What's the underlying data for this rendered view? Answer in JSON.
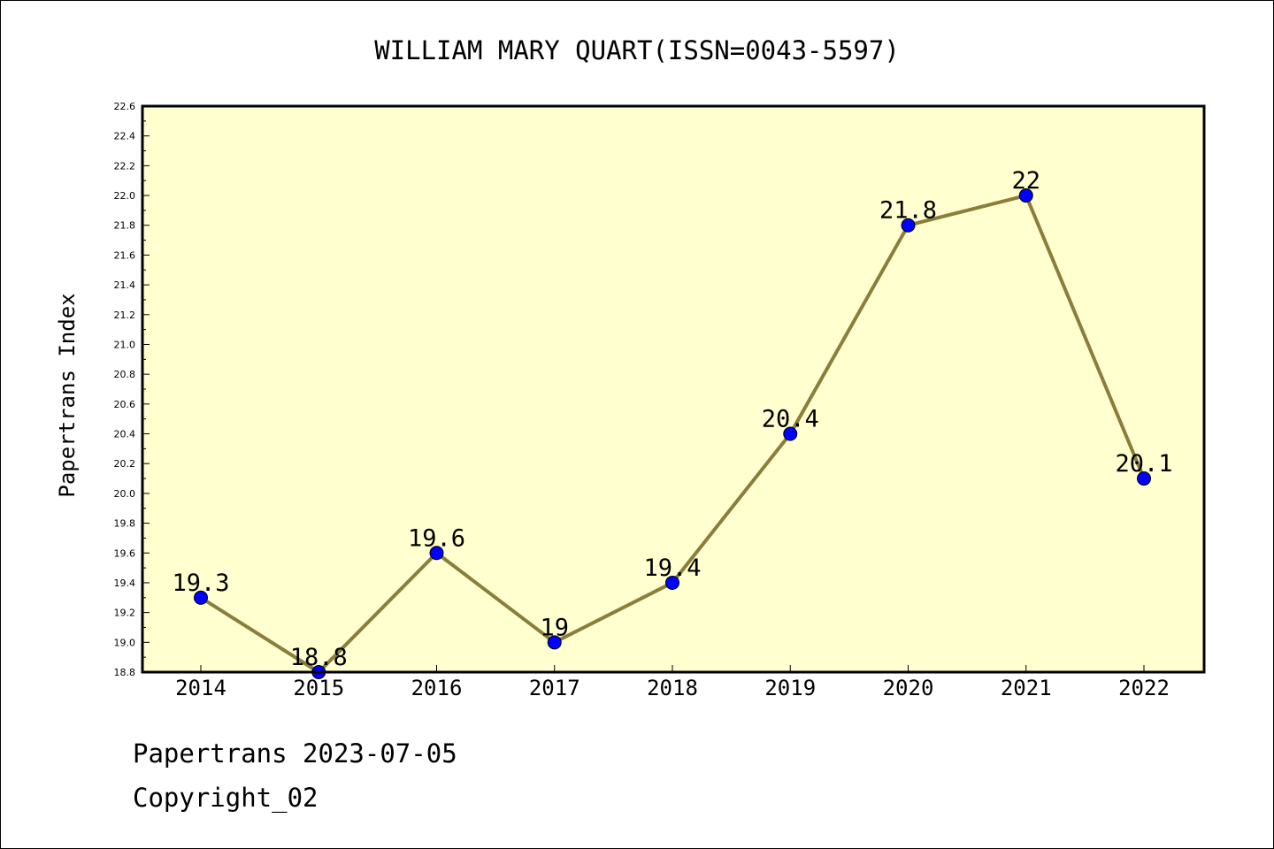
{
  "chart_data": {
    "type": "line",
    "title": "WILLIAM MARY QUART(ISSN=0043-5597)",
    "xlabel": "",
    "ylabel": "Papertrans Index",
    "categories": [
      "2014",
      "2015",
      "2016",
      "2017",
      "2018",
      "2019",
      "2020",
      "2021",
      "2022"
    ],
    "series": [
      {
        "values": [
          19.3,
          18.8,
          19.6,
          19.0,
          19.4,
          20.4,
          21.8,
          22.0,
          20.1
        ],
        "data_labels": [
          "19.3",
          "18.8",
          "19.6",
          "19",
          "19.4",
          "20.4",
          "21.8",
          "22",
          "20.1"
        ]
      }
    ],
    "ylim": [
      18.8,
      22.6
    ],
    "yticks": [
      "18.8",
      "19.0",
      "19.2",
      "19.4",
      "19.6",
      "19.8",
      "20.0",
      "20.2",
      "20.4",
      "20.6",
      "20.8",
      "21.0",
      "21.2",
      "21.4",
      "21.6",
      "21.8",
      "22.0",
      "22.2",
      "22.4",
      "22.6"
    ],
    "grid": false,
    "legend": "none",
    "colors": {
      "plot_background": "#ffffd0",
      "line": "#8b7d3a",
      "marker": "#0000ff"
    }
  },
  "footer": {
    "line1": "Papertrans 2023-07-05",
    "line2": "Copyright_02"
  }
}
